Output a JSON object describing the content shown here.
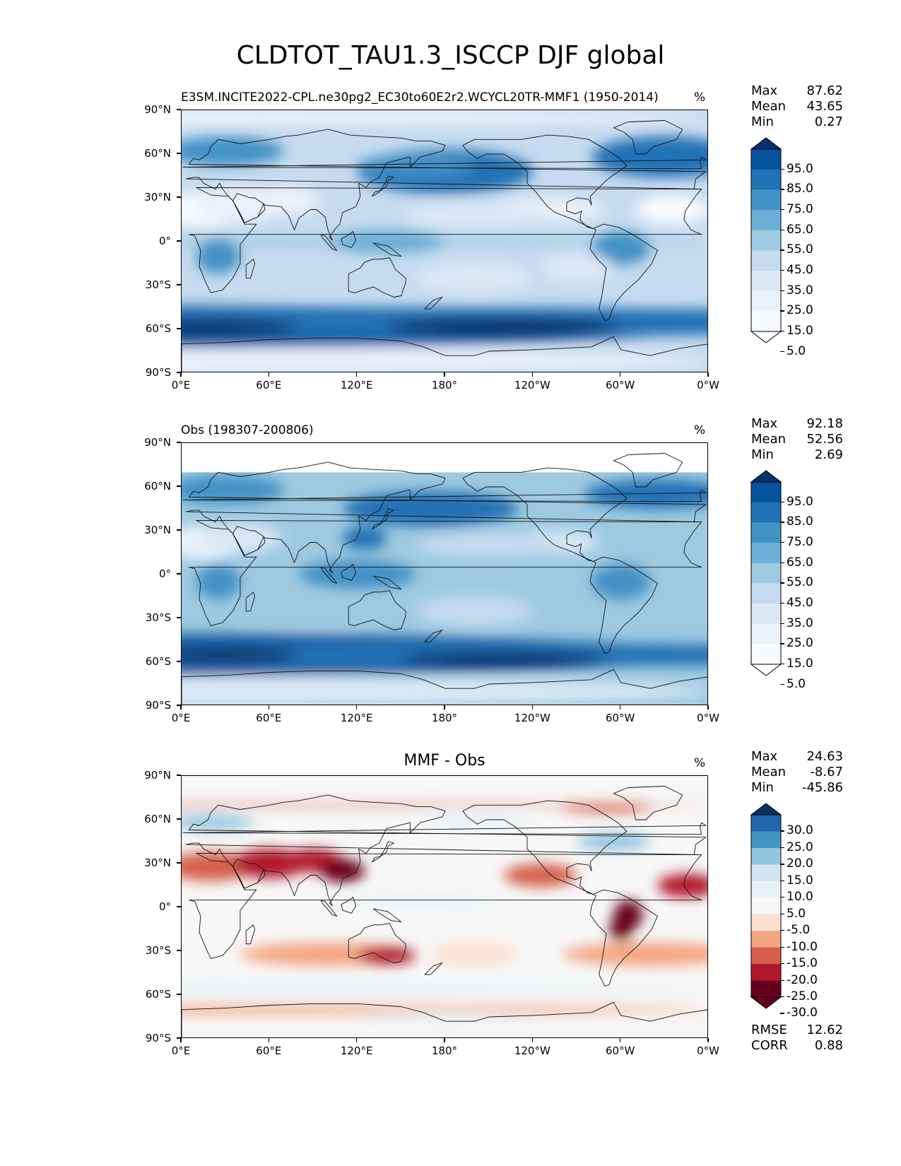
{
  "figure": {
    "title": "CLDTOT_TAU1.3_ISCCP DJF global"
  },
  "axes": {
    "lat_labels": [
      "90°N",
      "60°N",
      "30°N",
      "0°",
      "30°S",
      "60°S",
      "90°S"
    ],
    "lon_labels": [
      "0°E",
      "60°E",
      "120°E",
      "180°",
      "120°W",
      "60°W",
      "0°W"
    ]
  },
  "panels": [
    {
      "id": "model",
      "title": "E3SM.INCITE2022-CPL.ne30pg2_EC30to60E2r2.WCYCL20TR-MMF1 (1950-2014)",
      "title_style": "left",
      "units": "%",
      "stats": [
        {
          "label": "Max",
          "value": "87.62"
        },
        {
          "label": "Mean",
          "value": "43.65"
        },
        {
          "label": "Min",
          "value": "0.27"
        }
      ],
      "colorbar": {
        "ticks": [
          "95.0",
          "85.0",
          "75.0",
          "65.0",
          "55.0",
          "45.0",
          "35.0",
          "25.0",
          "15.0",
          "5.0"
        ],
        "colors": [
          "#08306b",
          "#08519c",
          "#2171b5",
          "#4292c6",
          "#6baed6",
          "#9ecae1",
          "#c6dbef",
          "#dbe9f6",
          "#eaf2fb",
          "#f7fbff",
          "#ffffff"
        ]
      }
    },
    {
      "id": "obs",
      "title": "Obs (198307-200806)",
      "title_style": "left",
      "units": "%",
      "stats": [
        {
          "label": "Max",
          "value": "92.18"
        },
        {
          "label": "Mean",
          "value": "52.56"
        },
        {
          "label": "Min",
          "value": "2.69"
        }
      ],
      "colorbar": {
        "ticks": [
          "95.0",
          "85.0",
          "75.0",
          "65.0",
          "55.0",
          "45.0",
          "35.0",
          "25.0",
          "15.0",
          "5.0"
        ],
        "colors": [
          "#08306b",
          "#08519c",
          "#2171b5",
          "#4292c6",
          "#6baed6",
          "#9ecae1",
          "#c6dbef",
          "#dbe9f6",
          "#eaf2fb",
          "#f7fbff",
          "#ffffff"
        ]
      }
    },
    {
      "id": "diff",
      "title": "MMF - Obs",
      "title_style": "center",
      "units": "%",
      "stats": [
        {
          "label": "Max",
          "value": "24.63"
        },
        {
          "label": "Mean",
          "value": "-8.67"
        },
        {
          "label": "Min",
          "value": "-45.86"
        }
      ],
      "extra_stats": [
        {
          "label": "RMSE",
          "value": "12.62"
        },
        {
          "label": "CORR",
          "value": "0.88"
        }
      ],
      "colorbar": {
        "ticks": [
          "30.0",
          "25.0",
          "20.0",
          "15.0",
          "10.0",
          "5.0",
          "-5.0",
          "-10.0",
          "-15.0",
          "-20.0",
          "-25.0",
          "-30.0"
        ],
        "colors": [
          "#053061",
          "#2166ac",
          "#4393c3",
          "#92c5de",
          "#d1e5f0",
          "#e8f1f6",
          "#f7f7f7",
          "#fbe0d0",
          "#f4a582",
          "#d6604d",
          "#b2182b",
          "#67001f",
          "#67001f"
        ]
      }
    }
  ]
}
